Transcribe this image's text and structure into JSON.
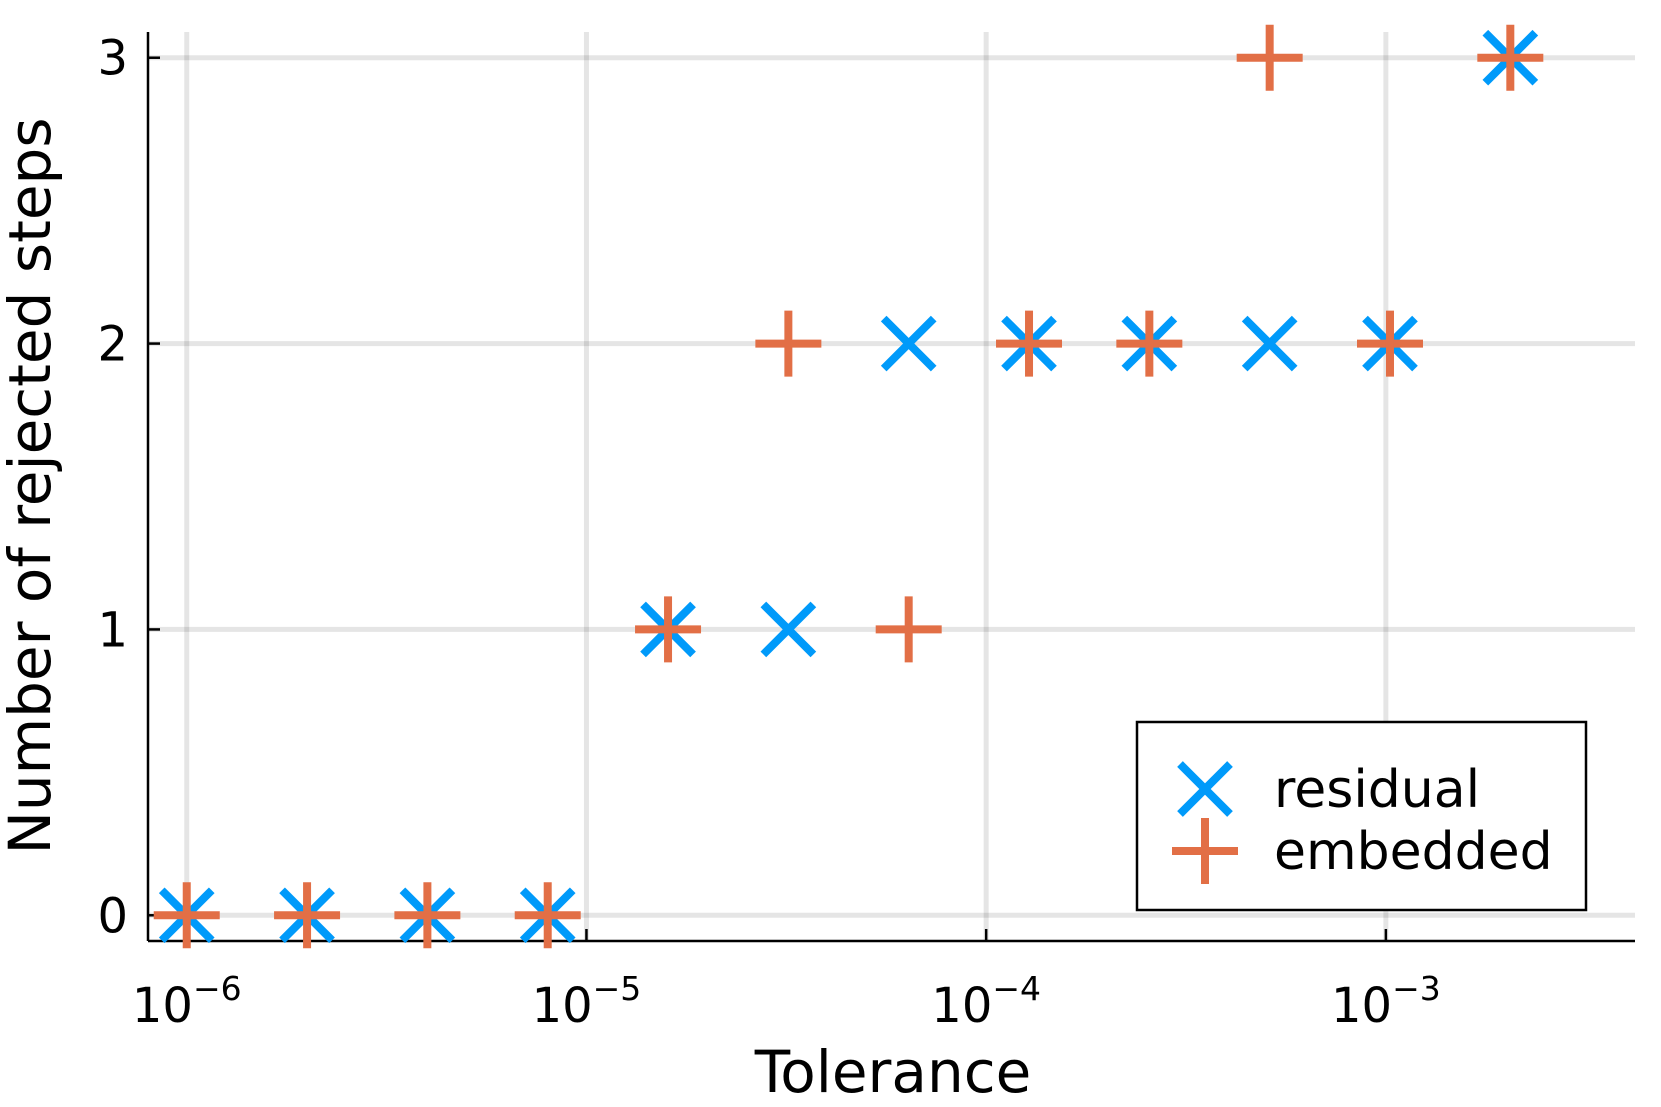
{
  "chart_data": {
    "type": "scatter",
    "title": "",
    "xlabel": "Tolerance",
    "ylabel": "Number of rejected steps",
    "xscale": "log10",
    "xlim": [
      8e-07,
      0.0042
    ],
    "ylim": [
      -0.09,
      3.09
    ],
    "grid": true,
    "legend_position": "bottom-right",
    "x_ticks": [
      {
        "base": "10",
        "exp": "−6",
        "value": 1e-06
      },
      {
        "base": "10",
        "exp": "−5",
        "value": 1e-05
      },
      {
        "base": "10",
        "exp": "−4",
        "value": 0.0001
      },
      {
        "base": "10",
        "exp": "−3",
        "value": 0.001
      }
    ],
    "y_ticks": [
      {
        "label": "0",
        "value": 0
      },
      {
        "label": "1",
        "value": 1
      },
      {
        "label": "2",
        "value": 2
      },
      {
        "label": "3",
        "value": 3
      }
    ],
    "x": [
      1e-06,
      2e-06,
      4e-06,
      8e-06,
      1.6e-05,
      3.2e-05,
      6.4e-05,
      0.000128,
      0.000256,
      0.000512,
      0.001024,
      0.002048
    ],
    "series": [
      {
        "name": "residual",
        "marker": "x",
        "color": "#009AFA",
        "values": [
          0,
          0,
          0,
          0,
          1,
          1,
          2,
          2,
          2,
          2,
          2,
          3
        ]
      },
      {
        "name": "embedded",
        "marker": "+",
        "color": "#E26F46",
        "values": [
          0,
          0,
          0,
          0,
          1,
          2,
          1,
          2,
          2,
          3,
          2,
          3
        ]
      }
    ]
  }
}
